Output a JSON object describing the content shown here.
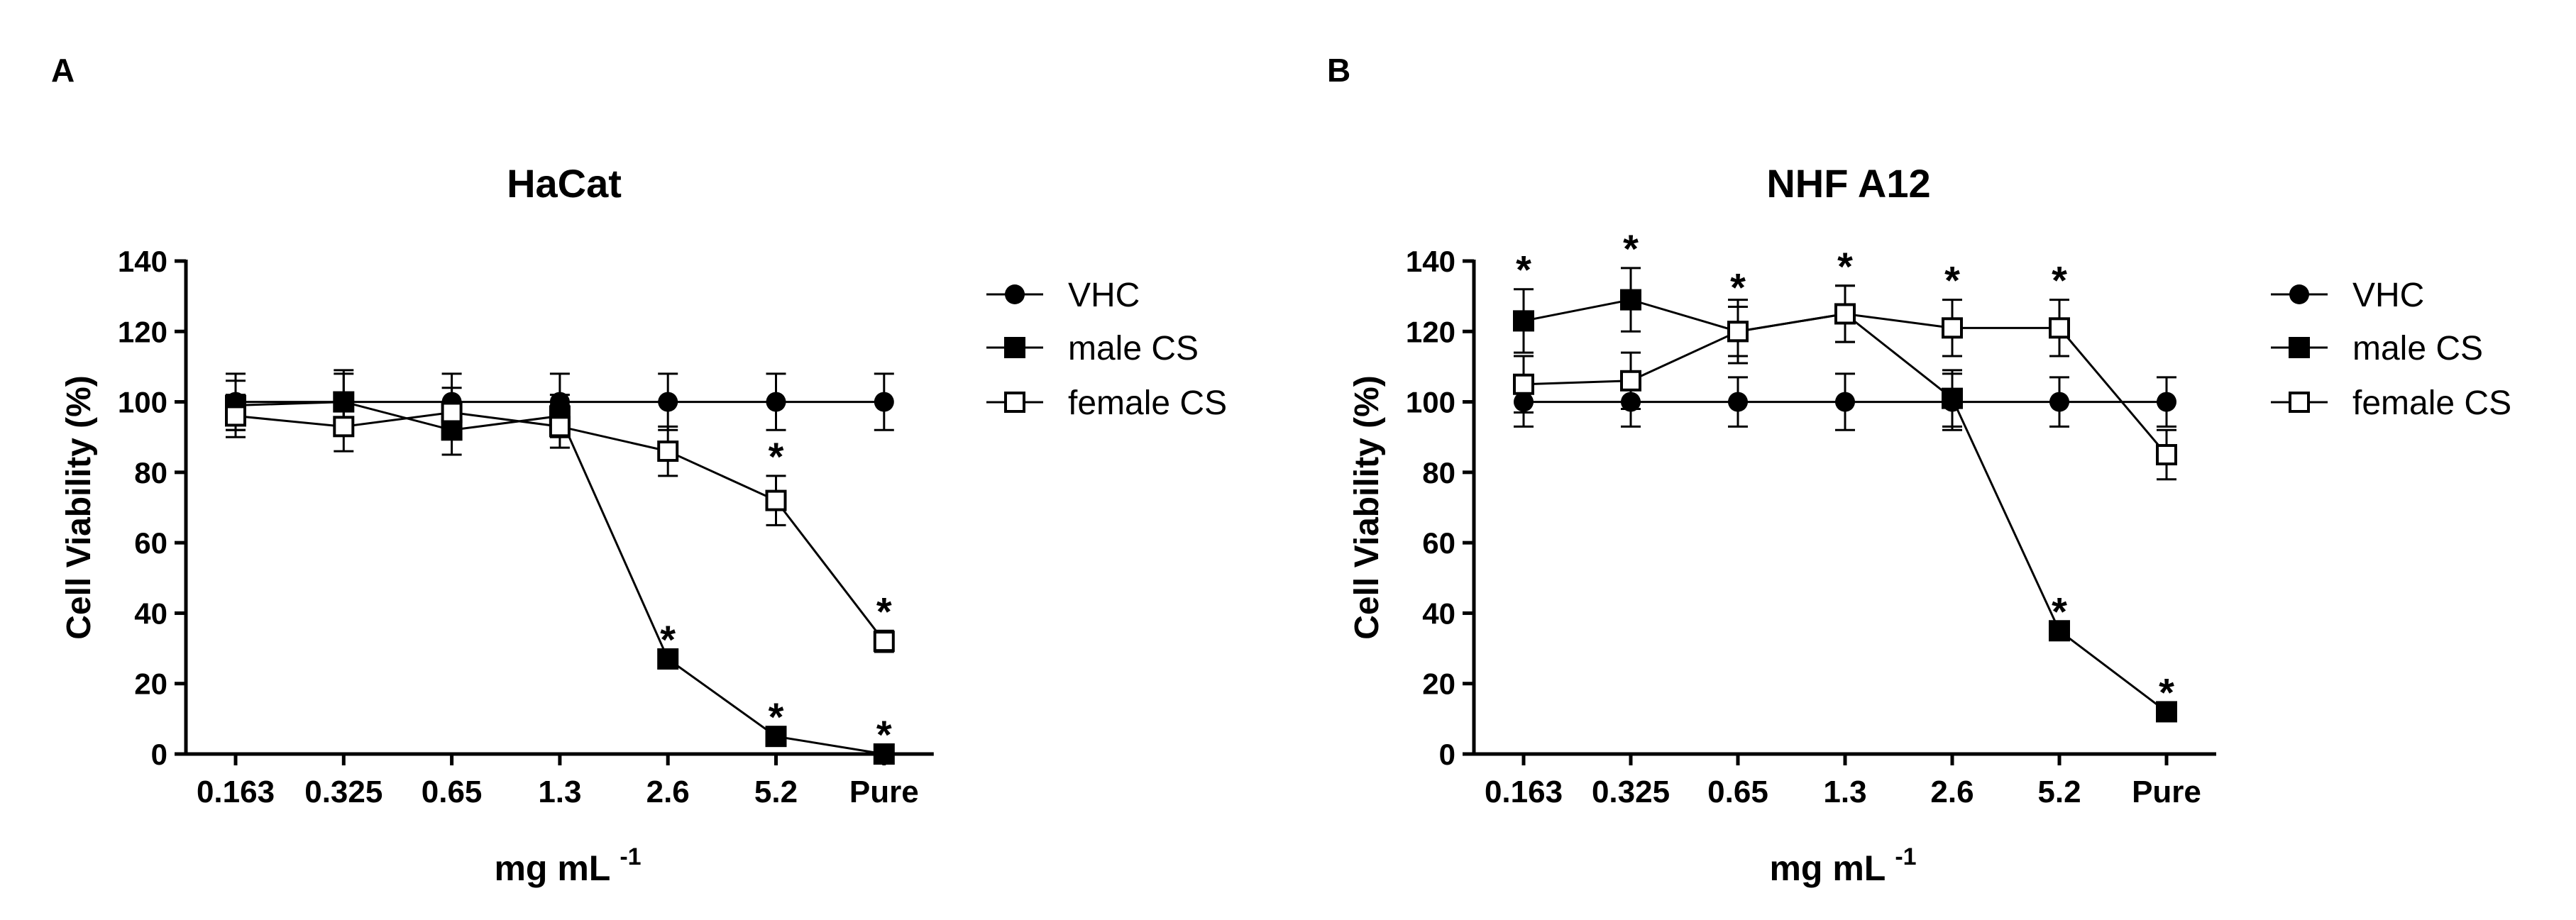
{
  "panels": [
    {
      "letter": "A"
    },
    {
      "letter": "B"
    }
  ],
  "chart_data": [
    {
      "type": "line",
      "title": "HaCat",
      "xlabel": "mg mL",
      "xlabel_superscript": "-1",
      "ylabel": "Cell Viability (%)",
      "categories": [
        "0.163",
        "0.325",
        "0.65",
        "1.3",
        "2.6",
        "5.2",
        "Pure"
      ],
      "ylim": [
        0,
        140
      ],
      "yticks": [
        0,
        20,
        40,
        60,
        80,
        100,
        120,
        140
      ],
      "legend": "right",
      "series": [
        {
          "name": "VHC",
          "marker": "filled-circle",
          "values": [
            100,
            100,
            100,
            100,
            100,
            100,
            100
          ],
          "errors": [
            8,
            8,
            8,
            8,
            8,
            8,
            8
          ]
        },
        {
          "name": "male CS",
          "marker": "filled-square",
          "values": [
            99,
            100,
            92,
            96,
            27,
            5,
            0
          ],
          "errors": [
            7,
            9,
            7,
            6,
            0,
            0,
            0
          ]
        },
        {
          "name": "female CS",
          "marker": "open-square",
          "values": [
            96,
            93,
            97,
            93,
            86,
            72,
            32
          ],
          "errors": [
            6,
            7,
            7,
            6,
            7,
            7,
            3
          ]
        }
      ],
      "annotations": [
        {
          "category": "2.6",
          "series": "male CS",
          "text": "*"
        },
        {
          "category": "5.2",
          "series": "male CS",
          "text": "*"
        },
        {
          "category": "Pure",
          "series": "male CS",
          "text": "*"
        },
        {
          "category": "5.2",
          "series": "female CS",
          "text": "*"
        },
        {
          "category": "Pure",
          "series": "female CS",
          "text": "*"
        }
      ]
    },
    {
      "type": "line",
      "title": "NHF A12",
      "xlabel": "mg mL",
      "xlabel_superscript": "-1",
      "ylabel": "Cell Viability (%)",
      "categories": [
        "0.163",
        "0.325",
        "0.65",
        "1.3",
        "2.6",
        "5.2",
        "Pure"
      ],
      "ylim": [
        0,
        140
      ],
      "yticks": [
        0,
        20,
        40,
        60,
        80,
        100,
        120,
        140
      ],
      "legend": "right",
      "series": [
        {
          "name": "VHC",
          "marker": "filled-circle",
          "values": [
            100,
            100,
            100,
            100,
            100,
            100,
            100
          ],
          "errors": [
            7,
            7,
            7,
            8,
            8,
            7,
            7
          ]
        },
        {
          "name": "male CS",
          "marker": "filled-square",
          "values": [
            123,
            129,
            120,
            125,
            101,
            35,
            12
          ],
          "errors": [
            9,
            9,
            9,
            8,
            8,
            0,
            0
          ]
        },
        {
          "name": "female CS",
          "marker": "open-square",
          "values": [
            105,
            106,
            120,
            125,
            121,
            121,
            85
          ],
          "errors": [
            8,
            8,
            7,
            8,
            8,
            8,
            7
          ]
        }
      ],
      "annotations": [
        {
          "category": "0.163",
          "series": "male CS",
          "text": "*"
        },
        {
          "category": "0.325",
          "series": "male CS",
          "text": "*"
        },
        {
          "category": "0.65",
          "series": "female CS",
          "text": "*"
        },
        {
          "category": "1.3",
          "series": "female CS",
          "text": "*"
        },
        {
          "category": "2.6",
          "series": "female CS",
          "text": "*"
        },
        {
          "category": "5.2",
          "series": "female CS",
          "text": "*"
        },
        {
          "category": "5.2",
          "series": "male CS",
          "text": "*"
        },
        {
          "category": "Pure",
          "series": "male CS",
          "text": "*"
        }
      ]
    }
  ]
}
